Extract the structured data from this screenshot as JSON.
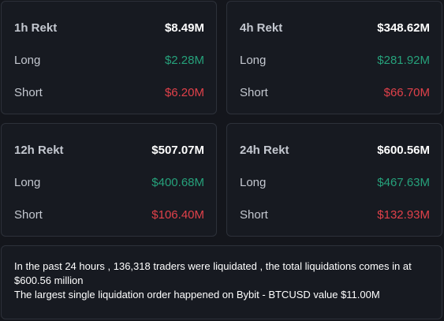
{
  "cards": [
    {
      "title": "1h Rekt",
      "total": "$8.49M",
      "long_label": "Long",
      "long_value": "$2.28M",
      "short_label": "Short",
      "short_value": "$6.20M"
    },
    {
      "title": "4h Rekt",
      "total": "$348.62M",
      "long_label": "Long",
      "long_value": "$281.92M",
      "short_label": "Short",
      "short_value": "$66.70M"
    },
    {
      "title": "12h Rekt",
      "total": "$507.07M",
      "long_label": "Long",
      "long_value": "$400.68M",
      "short_label": "Short",
      "short_value": "$106.40M"
    },
    {
      "title": "24h Rekt",
      "total": "$600.56M",
      "long_label": "Long",
      "long_value": "$467.63M",
      "short_label": "Short",
      "short_value": "$132.93M"
    }
  ],
  "summary": {
    "line1": "In the past 24 hours , 136,318 traders were liquidated , the total liquidations comes in at $600.56 million",
    "line2": "The largest single liquidation order happened on Bybit - BTCUSD value $11.00M"
  },
  "colors": {
    "background": "#14161c",
    "card": "#171a21",
    "border": "#2d313a",
    "long": "#26a17b",
    "short": "#e0414a",
    "text": "#ffffff"
  }
}
